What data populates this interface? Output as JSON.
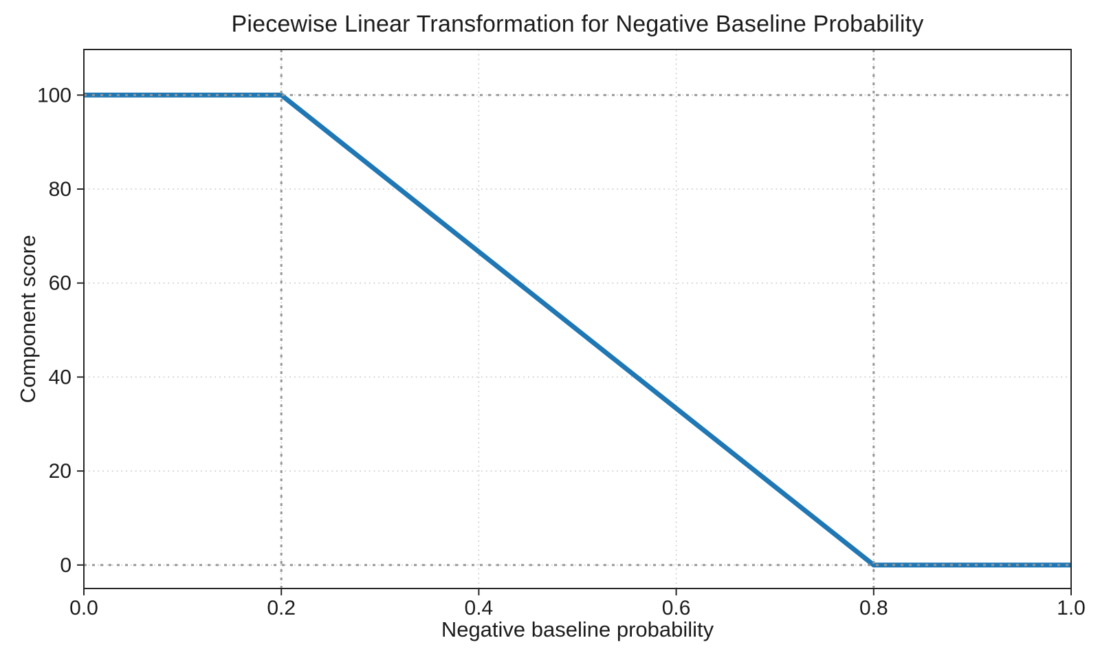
{
  "page": {
    "background": "#ffffff"
  },
  "chart_data": {
    "type": "line",
    "title": "Piecewise Linear Transformation for Negative Baseline Probability",
    "xlabel": "Negative baseline probability",
    "ylabel": "Component score",
    "xlim": [
      0,
      1
    ],
    "ylim": [
      -5,
      109.7
    ],
    "xticks": [
      0,
      0.2,
      0.4,
      0.6,
      0.8,
      1.0
    ],
    "xtick_labels": [
      "0.0",
      "0.2",
      "0.4",
      "0.6",
      "0.8",
      "1.0"
    ],
    "yticks": [
      0,
      20,
      40,
      60,
      80,
      100
    ],
    "ytick_labels": [
      "0",
      "20",
      "40",
      "60",
      "80",
      "100"
    ],
    "grid": {
      "show": true,
      "style": "dotted",
      "color": "#c6c6c6"
    },
    "reference_lines": {
      "x": [
        0.2,
        0.8
      ],
      "y": [
        0,
        100
      ],
      "style": "dotted",
      "color": "#979797"
    },
    "series": [
      {
        "name": "component-score",
        "color": "#1f77b4",
        "line_width": 7,
        "points": [
          [
            0,
            100
          ],
          [
            0.2,
            100
          ],
          [
            0.8,
            0
          ],
          [
            1.0,
            0
          ]
        ]
      }
    ],
    "legend": {
      "show": false
    },
    "text_color": "#1c1c1c",
    "axis_color": "#262626"
  }
}
